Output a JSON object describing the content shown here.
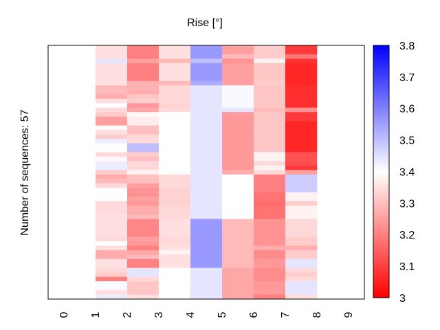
{
  "chart_data": {
    "type": "heatmap",
    "title": "Rise [°]",
    "xlabel": "",
    "ylabel": "Number of sequences: 57",
    "x_ticks": [
      "0",
      "1",
      "2",
      "3",
      "4",
      "5",
      "6",
      "7",
      "8",
      "9"
    ],
    "xlim": [
      -0.5,
      9.5
    ],
    "n_rows": 57,
    "colorbar": {
      "min": 3.0,
      "max": 3.8,
      "center": 3.4,
      "colormap": "bwr",
      "low_color": "#ff0000",
      "mid_color": "#ffffff",
      "high_color": "#0000ff",
      "ticks": [
        "3",
        "3.1",
        "3.2",
        "3.3",
        "3.4",
        "3.5",
        "3.6",
        "3.7",
        "3.8"
      ]
    },
    "columns": [
      {
        "x_start": 1,
        "x_end": 2,
        "runs": [
          [
            3,
            3.35
          ],
          [
            1,
            3.44
          ],
          [
            5,
            3.35
          ],
          [
            2,
            3.29
          ],
          [
            1,
            3.27
          ],
          [
            1,
            3.35
          ],
          [
            1,
            3.4
          ],
          [
            1,
            3.34
          ],
          [
            1,
            3.32
          ],
          [
            2,
            3.25
          ],
          [
            1,
            3.39
          ],
          [
            1,
            3.35
          ],
          [
            1,
            3.32
          ],
          [
            1,
            3.43
          ],
          [
            2,
            3.4
          ],
          [
            1,
            3.34
          ],
          [
            1,
            3.39
          ],
          [
            2,
            3.43
          ],
          [
            1,
            3.32
          ],
          [
            1,
            3.27
          ],
          [
            1,
            3.29
          ],
          [
            1,
            3.34
          ],
          [
            3,
            3.4
          ],
          [
            3,
            3.34
          ],
          [
            5,
            3.35
          ],
          [
            1,
            3.34
          ],
          [
            1,
            3.4
          ],
          [
            1,
            3.35
          ],
          [
            2,
            3.27
          ],
          [
            2,
            3.35
          ],
          [
            1,
            3.34
          ],
          [
            1,
            3.32
          ],
          [
            1,
            3.2
          ],
          [
            2,
            3.41
          ],
          [
            1,
            3.35
          ],
          [
            1,
            3.43
          ]
        ]
      },
      {
        "x_start": 2,
        "x_end": 3,
        "runs": [
          [
            3,
            3.2
          ],
          [
            1,
            3.25
          ],
          [
            4,
            3.2
          ],
          [
            1,
            3.28
          ],
          [
            1,
            3.28
          ],
          [
            1,
            3.27
          ],
          [
            1,
            3.31
          ],
          [
            1,
            3.32
          ],
          [
            1,
            3.24
          ],
          [
            1,
            3.26
          ],
          [
            1,
            3.39
          ],
          [
            2,
            3.37
          ],
          [
            1,
            3.3
          ],
          [
            1,
            3.3
          ],
          [
            1,
            3.34
          ],
          [
            1,
            3.34
          ],
          [
            2,
            3.5
          ],
          [
            1,
            3.32
          ],
          [
            1,
            3.3
          ],
          [
            2,
            3.34
          ],
          [
            1,
            3.38
          ],
          [
            2,
            3.3
          ],
          [
            1,
            3.25
          ],
          [
            2,
            3.23
          ],
          [
            1,
            3.25
          ],
          [
            1,
            3.24
          ],
          [
            2,
            3.27
          ],
          [
            1,
            3.29
          ],
          [
            4,
            3.21
          ],
          [
            1,
            3.25
          ],
          [
            1,
            3.24
          ],
          [
            1,
            3.2
          ],
          [
            1,
            3.26
          ],
          [
            1,
            3.29
          ],
          [
            2,
            3.2
          ],
          [
            2,
            3.44
          ],
          [
            1,
            3.34
          ],
          [
            3,
            3.31
          ],
          [
            1,
            3.35
          ]
        ]
      },
      {
        "x_start": 3,
        "x_end": 4,
        "runs": [
          [
            3,
            3.35
          ],
          [
            1,
            3.29
          ],
          [
            4,
            3.35
          ],
          [
            1,
            3.29
          ],
          [
            2,
            3.34
          ],
          [
            2,
            3.34
          ],
          [
            1,
            3.33
          ],
          [
            1,
            3.34
          ],
          [
            14,
            3.4
          ],
          [
            2,
            3.34
          ],
          [
            1,
            3.34
          ],
          [
            4,
            3.33
          ],
          [
            3,
            3.34
          ],
          [
            4,
            3.35
          ],
          [
            2,
            3.34
          ],
          [
            1,
            3.35
          ],
          [
            1,
            3.38
          ],
          [
            3,
            3.35
          ],
          [
            7,
            3.4
          ]
        ]
      },
      {
        "x_start": 4,
        "x_end": 5,
        "runs": [
          [
            3,
            3.56
          ],
          [
            1,
            3.5
          ],
          [
            4,
            3.56
          ],
          [
            1,
            3.53
          ],
          [
            30,
            3.44
          ],
          [
            11,
            3.56
          ],
          [
            7,
            3.44
          ]
        ]
      },
      {
        "x_start": 5,
        "x_end": 6,
        "runs": [
          [
            2,
            3.25
          ],
          [
            1,
            3.29
          ],
          [
            1,
            3.23
          ],
          [
            5,
            3.25
          ],
          [
            5,
            3.41
          ],
          [
            1,
            3.44
          ],
          [
            13,
            3.24
          ],
          [
            1,
            3.27
          ],
          [
            10,
            3.4
          ],
          [
            11,
            3.29
          ],
          [
            7,
            3.26
          ]
        ]
      },
      {
        "x_start": 6,
        "x_end": 7,
        "runs": [
          [
            3,
            3.32
          ],
          [
            1,
            3.38
          ],
          [
            4,
            3.31
          ],
          [
            1,
            3.32
          ],
          [
            5,
            3.31
          ],
          [
            1,
            3.29
          ],
          [
            2,
            3.31
          ],
          [
            7,
            3.31
          ],
          [
            2,
            3.38
          ],
          [
            1,
            3.34
          ],
          [
            1,
            3.38
          ],
          [
            1,
            3.34
          ],
          [
            4,
            3.2
          ],
          [
            2,
            3.18
          ],
          [
            1,
            3.17
          ],
          [
            3,
            3.18
          ],
          [
            6,
            3.23
          ],
          [
            1,
            3.27
          ],
          [
            2,
            3.22
          ],
          [
            2,
            3.24
          ],
          [
            3,
            3.22
          ],
          [
            3,
            3.24
          ],
          [
            1,
            3.2
          ]
        ]
      },
      {
        "x_start": 7,
        "x_end": 8,
        "runs": [
          [
            2,
            3.09
          ],
          [
            1,
            3.19
          ],
          [
            1,
            3.08
          ],
          [
            5,
            3.06
          ],
          [
            5,
            3.07
          ],
          [
            1,
            3.23
          ],
          [
            2,
            3.09
          ],
          [
            7,
            3.06
          ],
          [
            2,
            3.13
          ],
          [
            1,
            3.12
          ],
          [
            1,
            3.09
          ],
          [
            1,
            3.25
          ],
          [
            4,
            3.48
          ],
          [
            2,
            3.38
          ],
          [
            1,
            3.32
          ],
          [
            3,
            3.38
          ],
          [
            4,
            3.34
          ],
          [
            2,
            3.32
          ],
          [
            1,
            3.27
          ],
          [
            2,
            3.32
          ],
          [
            2,
            3.44
          ],
          [
            1,
            3.34
          ],
          [
            1,
            3.32
          ],
          [
            1,
            3.34
          ],
          [
            3,
            3.44
          ],
          [
            1,
            3.35
          ]
        ]
      }
    ]
  }
}
